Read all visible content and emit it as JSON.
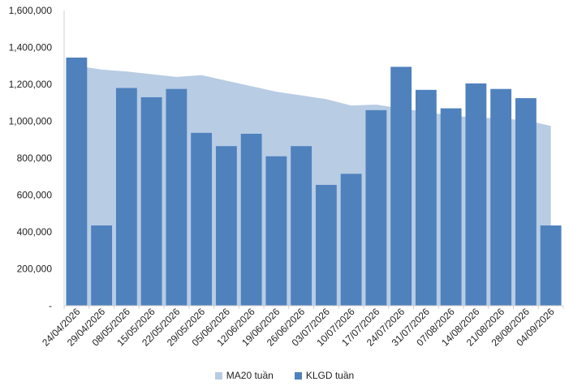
{
  "chart_data": {
    "type": "bar",
    "categories": [
      "24/04/2026",
      "29/04/2026",
      "08/05/2026",
      "15/05/2026",
      "22/05/2026",
      "29/05/2026",
      "05/06/2026",
      "12/06/2026",
      "19/06/2026",
      "26/06/2026",
      "03/07/2026",
      "10/07/2026",
      "17/07/2026",
      "24/07/2026",
      "31/07/2026",
      "07/08/2026",
      "14/08/2026",
      "21/08/2026",
      "28/08/2026",
      "04/09/2026"
    ],
    "series": [
      {
        "name": "MA20 tuần",
        "type": "area",
        "color": "#b8cce4",
        "values": [
          1300000,
          1280000,
          1270000,
          1255000,
          1240000,
          1250000,
          1220000,
          1190000,
          1160000,
          1140000,
          1120000,
          1085000,
          1090000,
          1070000,
          1050000,
          1030000,
          1020000,
          1015000,
          1005000,
          975000
        ]
      },
      {
        "name": "KLGD tuần",
        "type": "bar",
        "color": "#4f81bd",
        "values": [
          1345000,
          435000,
          1180000,
          1130000,
          1175000,
          937000,
          865000,
          932000,
          810000,
          865000,
          655000,
          715000,
          1060000,
          1295000,
          1170000,
          1070000,
          1205000,
          1175000,
          1125000,
          435000
        ]
      }
    ],
    "yticks": [
      "-",
      "200,000",
      "400,000",
      "600,000",
      "800,000",
      "1,000,000",
      "1,200,000",
      "1,400,000",
      "1,600,000"
    ],
    "ylim": [
      0,
      1600000
    ],
    "grid": false,
    "legend_position": "bottom"
  }
}
